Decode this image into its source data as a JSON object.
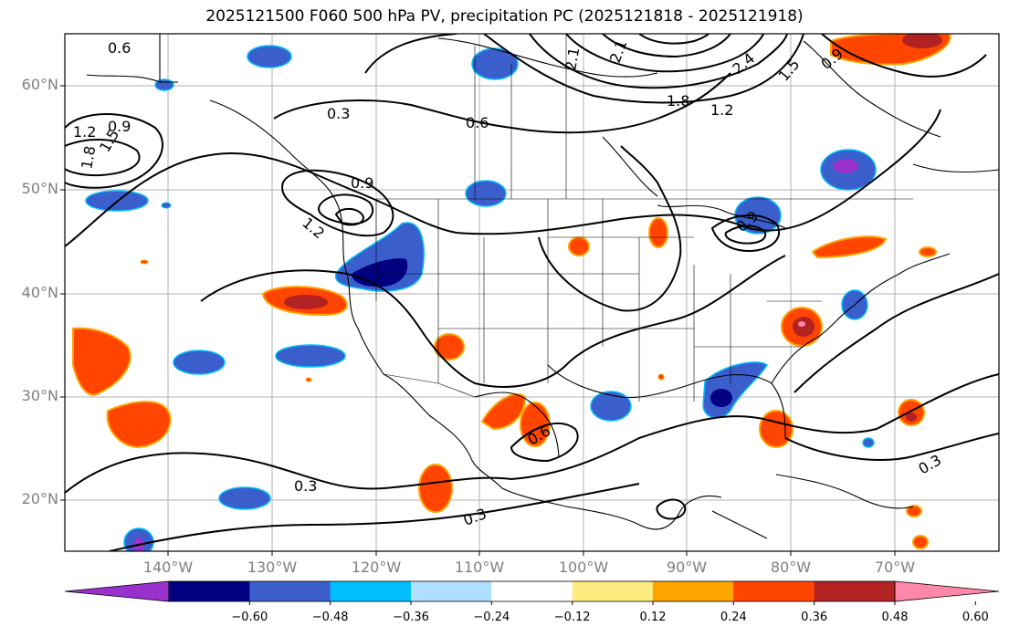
{
  "title": "2025121500 F060 500 hPa PV, precipitation PC (2025121818 - 2025121918)",
  "latitude_labels": [
    "60°N",
    "50°N",
    "40°N",
    "30°N",
    "20°N"
  ],
  "longitude_labels": [
    "140°W",
    "130°W",
    "120°W",
    "110°W",
    "100°W",
    "90°W",
    "80°W",
    "70°W"
  ],
  "contour_labels": [
    "0.6",
    "0.9",
    "1.2",
    "1.5",
    "1.8",
    "0.3",
    "0.6",
    "0.9",
    "1.2",
    "2.1",
    "2.4",
    "1.8",
    "1.2",
    "1.5",
    "0.3",
    "0.3",
    "0.3",
    "0.6",
    "0.9",
    "2.1",
    "0.9"
  ],
  "colorbar": {
    "ticks": [
      "−0.60",
      "−0.48",
      "−0.36",
      "−0.24",
      "−0.12",
      "0.12",
      "0.24",
      "0.36",
      "0.48",
      "0.60"
    ],
    "colors": [
      "#9932cc",
      "#000080",
      "#3a5fcd",
      "#00bfff",
      "#afdfff",
      "#ffffff",
      "#ffeb80",
      "#ffa500",
      "#ff4500",
      "#b22222",
      "#ff88aa"
    ]
  },
  "colors": {
    "grid": "#b0b0b0",
    "coast": "#000000",
    "contour": "#000000"
  }
}
